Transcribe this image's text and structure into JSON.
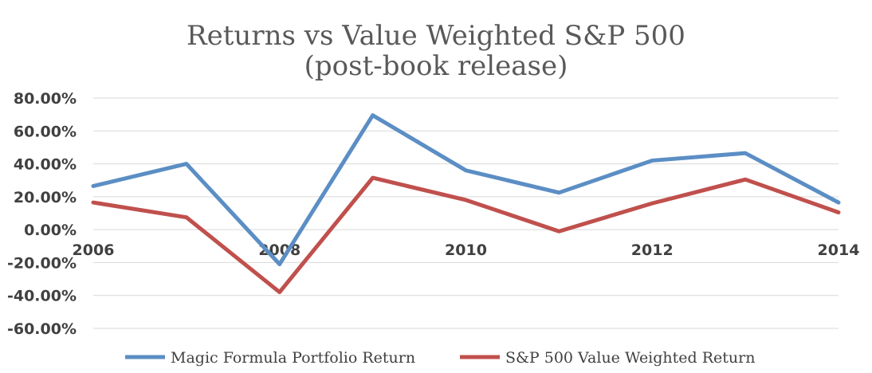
{
  "chart_data": {
    "type": "line",
    "title": "Returns vs Value Weighted S&P 500",
    "subtitle": "(post-book release)",
    "x": [
      2006,
      2007,
      2008,
      2009,
      2010,
      2011,
      2012,
      2013,
      2014
    ],
    "x_tick_labels": [
      "2006",
      "2008",
      "2010",
      "2012",
      "2014"
    ],
    "y_tick_labels": [
      "80.00%",
      "60.00%",
      "40.00%",
      "20.00%",
      "0.00%",
      "-20.00%",
      "-40.00%",
      "-60.00%"
    ],
    "ylim": [
      -60,
      80
    ],
    "grid": true,
    "legend_position": "bottom",
    "series": [
      {
        "name": "Magic Formula Portfolio Return",
        "color": "#5b8ec4",
        "values": [
          26.5,
          40.0,
          -21.0,
          69.5,
          36.0,
          22.5,
          42.0,
          46.5,
          16.5
        ]
      },
      {
        "name": "S&P 500 Value Weighted Return",
        "color": "#c0504d",
        "values": [
          16.5,
          7.5,
          -38.0,
          31.5,
          18.0,
          -1.0,
          16.0,
          30.5,
          10.5
        ]
      }
    ]
  }
}
